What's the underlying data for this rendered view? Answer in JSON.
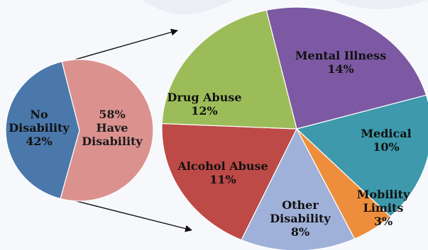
{
  "chart_data": [
    {
      "type": "pie",
      "slices": [
        {
          "label_lines": [
            "No",
            "Disability",
            "42%"
          ],
          "value": 42,
          "color": "#4a78ab",
          "text_color": "#111111"
        },
        {
          "label_lines": [
            "58%",
            "Have",
            "Disability"
          ],
          "value": 58,
          "color": "#db928f",
          "text_color": "#1a1a1a"
        }
      ]
    },
    {
      "type": "pie",
      "slices": [
        {
          "label_lines": [
            "Mental Illness",
            "14%"
          ],
          "value": 14,
          "color": "#7c59a2",
          "text_color": "#111111"
        },
        {
          "label_lines": [
            "Medical",
            "10%"
          ],
          "value": 10,
          "color": "#3d99ab",
          "text_color": "#111111"
        },
        {
          "label_lines": [
            "Mobility",
            "Limits",
            "3%"
          ],
          "value": 3,
          "color": "#ee8e3c",
          "text_color": "#111111"
        },
        {
          "label_lines": [
            "Other",
            "Disability",
            "8%"
          ],
          "value": 8,
          "color": "#9fb1d9",
          "text_color": "#111111"
        },
        {
          "label_lines": [
            "Alcohol Abuse",
            "11%"
          ],
          "value": 11,
          "color": "#bd4a47",
          "text_color": "#111111"
        },
        {
          "label_lines": [
            "Drug Abuse",
            "12%"
          ],
          "value": 12,
          "color": "#9cbc59",
          "text_color": "#111111"
        }
      ]
    }
  ]
}
